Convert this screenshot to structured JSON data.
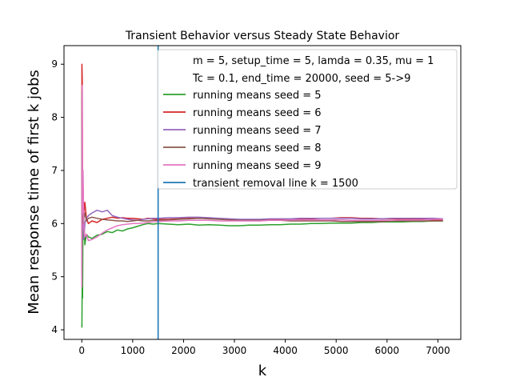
{
  "chart_data": {
    "type": "line",
    "title": "Transient Behavior versus Steady State Behavior",
    "xlabel": "k",
    "ylabel": "Mean response time of first k jobs",
    "xlim": [
      -350,
      7450
    ],
    "ylim": [
      3.82,
      9.35
    ],
    "xticks": [
      0,
      1000,
      2000,
      3000,
      4000,
      5000,
      6000,
      7000
    ],
    "yticks": [
      4,
      5,
      6,
      7,
      8,
      9
    ],
    "grid": false,
    "legend_position": "upper-right",
    "legend_header": [
      "m = 5, setup_time = 5, lamda = 0.35, mu = 1",
      "Tc = 0.1, end_time = 20000, seed = 5->9"
    ],
    "series": [
      {
        "name": "running means seed = 5",
        "color": "#2ca02c",
        "x": [
          0,
          3,
          8,
          15,
          25,
          40,
          60,
          90,
          130,
          200,
          300,
          400,
          500,
          600,
          700,
          800,
          900,
          1000,
          1100,
          1200,
          1300,
          1400,
          1500,
          1700,
          1900,
          2100,
          2300,
          2500,
          2700,
          2900,
          3100,
          3300,
          3500,
          3700,
          3900,
          4100,
          4300,
          4500,
          4700,
          4900,
          5100,
          5300,
          5500,
          5700,
          5900,
          6100,
          6300,
          6500,
          6700,
          6900,
          7100
        ],
        "values": [
          4.1,
          4.05,
          5.0,
          4.6,
          6.3,
          6.1,
          5.6,
          5.8,
          5.75,
          5.72,
          5.78,
          5.8,
          5.85,
          5.83,
          5.88,
          5.86,
          5.9,
          5.92,
          5.95,
          5.98,
          6.0,
          5.99,
          6.0,
          5.99,
          5.98,
          5.99,
          5.97,
          5.98,
          5.97,
          5.96,
          5.96,
          5.97,
          5.97,
          5.98,
          5.98,
          5.99,
          5.99,
          6.0,
          6.0,
          6.01,
          6.01,
          6.01,
          6.02,
          6.02,
          6.03,
          6.03,
          6.03,
          6.04,
          6.04,
          6.05,
          6.05
        ]
      },
      {
        "name": "running means seed = 6",
        "color": "#d62728",
        "x": [
          0,
          3,
          8,
          15,
          25,
          40,
          60,
          90,
          130,
          200,
          300,
          400,
          500,
          600,
          700,
          800,
          900,
          1000,
          1100,
          1200,
          1300,
          1400,
          1500,
          1700,
          1900,
          2100,
          2300,
          2500,
          2700,
          2900,
          3100,
          3300,
          3500,
          3700,
          3900,
          4100,
          4300,
          4500,
          4700,
          4900,
          5100,
          5300,
          5500,
          5700,
          5900,
          6100,
          6300,
          6500,
          6700,
          6900,
          7100
        ],
        "values": [
          5.5,
          9.0,
          8.7,
          6.5,
          6.7,
          6.2,
          6.4,
          6.1,
          6.0,
          6.05,
          6.02,
          6.08,
          6.1,
          6.12,
          6.1,
          6.11,
          6.1,
          6.1,
          6.09,
          6.08,
          6.1,
          6.09,
          6.08,
          6.08,
          6.09,
          6.1,
          6.11,
          6.1,
          6.09,
          6.08,
          6.07,
          6.07,
          6.06,
          6.07,
          6.08,
          6.08,
          6.09,
          6.09,
          6.1,
          6.1,
          6.11,
          6.11,
          6.1,
          6.1,
          6.09,
          6.09,
          6.08,
          6.08,
          6.08,
          6.07,
          6.07
        ]
      },
      {
        "name": "running means seed = 7",
        "color": "#9467bd",
        "x": [
          0,
          3,
          8,
          15,
          25,
          40,
          60,
          90,
          130,
          200,
          300,
          400,
          500,
          600,
          700,
          800,
          900,
          1000,
          1100,
          1200,
          1300,
          1400,
          1500,
          1700,
          1900,
          2100,
          2300,
          2500,
          2700,
          2900,
          3100,
          3300,
          3500,
          3700,
          3900,
          4100,
          4300,
          4500,
          4700,
          4900,
          5100,
          5300,
          5500,
          5700,
          5900,
          6100,
          6300,
          6500,
          6700,
          6900,
          7100
        ],
        "values": [
          5.2,
          7.9,
          6.6,
          5.9,
          6.2,
          5.7,
          6.0,
          6.1,
          6.15,
          6.2,
          6.25,
          6.22,
          6.25,
          6.15,
          6.12,
          6.1,
          6.08,
          6.07,
          6.06,
          6.08,
          6.09,
          6.1,
          6.1,
          6.11,
          6.11,
          6.12,
          6.12,
          6.11,
          6.1,
          6.09,
          6.08,
          6.08,
          6.08,
          6.09,
          6.09,
          6.09,
          6.1,
          6.1,
          6.1,
          6.1,
          6.1,
          6.1,
          6.09,
          6.09,
          6.09,
          6.1,
          6.1,
          6.1,
          6.1,
          6.1,
          6.09
        ]
      },
      {
        "name": "running means seed = 8",
        "color": "#8c564b",
        "x": [
          0,
          3,
          8,
          15,
          25,
          40,
          60,
          90,
          130,
          200,
          300,
          400,
          500,
          600,
          700,
          800,
          900,
          1000,
          1100,
          1200,
          1300,
          1400,
          1500,
          1700,
          1900,
          2100,
          2300,
          2500,
          2700,
          2900,
          3100,
          3300,
          3500,
          3700,
          3900,
          4100,
          4300,
          4500,
          4700,
          4900,
          5100,
          5300,
          5500,
          5700,
          5900,
          6100,
          6300,
          6500,
          6700,
          6900,
          7100
        ],
        "values": [
          5.0,
          8.5,
          7.2,
          6.0,
          6.5,
          6.1,
          6.2,
          6.05,
          6.1,
          6.12,
          6.1,
          6.08,
          6.07,
          6.06,
          6.05,
          6.05,
          6.04,
          6.05,
          6.06,
          6.05,
          6.05,
          6.06,
          6.06,
          6.07,
          6.08,
          6.09,
          6.1,
          6.09,
          6.08,
          6.07,
          6.06,
          6.06,
          6.06,
          6.06,
          6.06,
          6.05,
          6.05,
          6.05,
          6.05,
          6.05,
          6.04,
          6.04,
          6.04,
          6.04,
          6.04,
          6.05,
          6.05,
          6.05,
          6.05,
          6.05,
          6.05
        ]
      },
      {
        "name": "running means seed = 9",
        "color": "#e377c2",
        "x": [
          0,
          3,
          8,
          15,
          25,
          40,
          60,
          90,
          130,
          200,
          300,
          400,
          500,
          600,
          700,
          800,
          900,
          1000,
          1100,
          1200,
          1300,
          1400,
          1500,
          1700,
          1900,
          2100,
          2300,
          2500,
          2700,
          2900,
          3100,
          3300,
          3500,
          3700,
          3900,
          4100,
          4300,
          4500,
          4700,
          4900,
          5100,
          5300,
          5500,
          5700,
          5900,
          6100,
          6300,
          6500,
          6700,
          6900,
          7100
        ],
        "values": [
          4.8,
          5.5,
          8.6,
          6.2,
          7.0,
          5.9,
          5.75,
          5.8,
          5.68,
          5.7,
          5.75,
          5.82,
          5.88,
          5.92,
          5.96,
          5.98,
          5.99,
          6.0,
          6.0,
          6.01,
          6.02,
          6.03,
          6.04,
          6.05,
          6.05,
          6.06,
          6.06,
          6.06,
          6.05,
          6.05,
          6.05,
          6.05,
          6.05,
          6.06,
          6.06,
          6.07,
          6.07,
          6.07,
          6.07,
          6.07,
          6.07,
          6.06,
          6.06,
          6.06,
          6.06,
          6.06,
          6.07,
          6.07,
          6.07,
          6.08,
          6.08
        ]
      },
      {
        "name": "transient removal line k = 1500",
        "color": "#1f77b4",
        "type": "vline",
        "x_value": 1500
      }
    ]
  }
}
